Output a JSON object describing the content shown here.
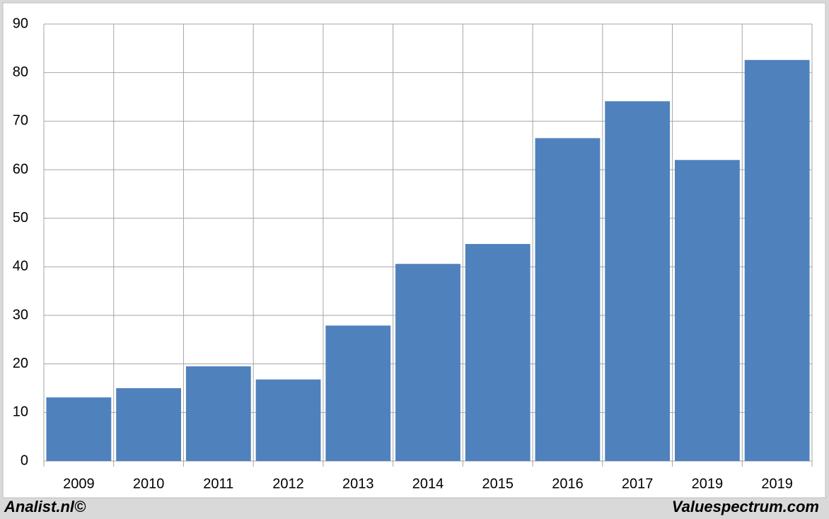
{
  "chart_data": {
    "type": "bar",
    "categories": [
      "2009",
      "2010",
      "2011",
      "2012",
      "2013",
      "2014",
      "2015",
      "2016",
      "2017",
      "2019",
      "2019"
    ],
    "values": [
      13.1,
      15,
      19.5,
      16.8,
      27.9,
      40.6,
      44.7,
      66.5,
      74.1,
      62,
      82.6
    ],
    "color": "#4f81bd",
    "ylim": [
      0,
      90
    ],
    "yticks": [
      0,
      10,
      20,
      30,
      40,
      50,
      60,
      70,
      80,
      90
    ],
    "grid": true,
    "source_left": "Analist.nl©",
    "source_right": "Valuespectrum.com"
  }
}
